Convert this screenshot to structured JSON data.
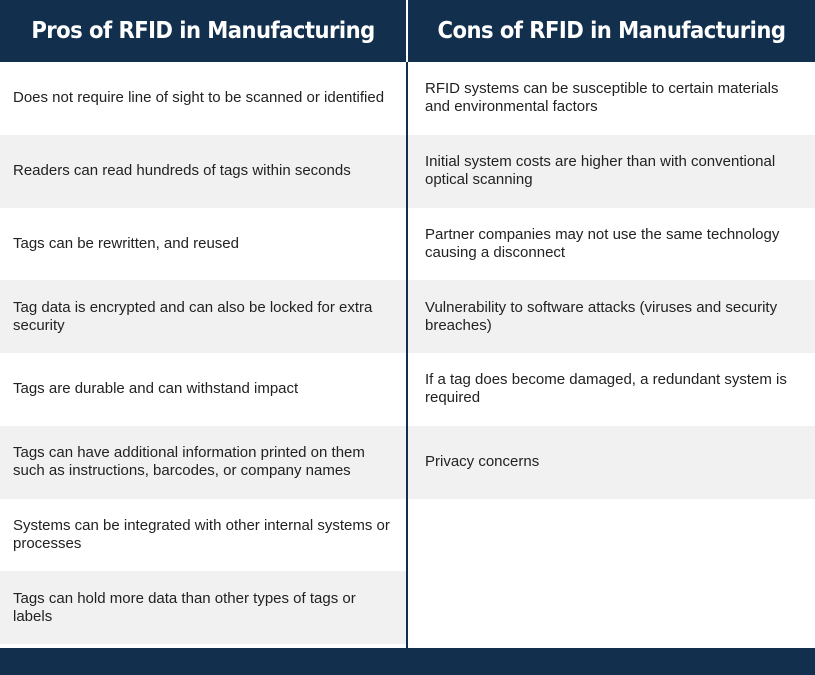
{
  "header": {
    "pros_title": "Pros of RFID in Manufacturing",
    "cons_title": "Cons of RFID in Manufacturing"
  },
  "pros": [
    "Does not require line of sight to be scanned or identified",
    "Readers can read hundreds of tags within seconds",
    "Tags can be rewritten, and reused",
    "Tag data is encrypted and can also be locked for extra security",
    "Tags are durable and can withstand impact",
    "Tags can have additional information printed on them such as instructions, barcodes, or company names",
    "Systems can be integrated with other internal systems or processes",
    "Tags can hold more data than other types of tags or labels"
  ],
  "cons": [
    "RFID systems can be susceptible to certain materials and environmental factors",
    "Initial system costs are higher than with conventional optical scanning",
    "Partner companies may not use the same technology causing a disconnect",
    "Vulnerability to software attacks (viruses and security breaches)",
    "If a tag does become damaged, a redundant system is required",
    "Privacy concerns"
  ],
  "colors": {
    "header_bg": "#12304d",
    "alt_row_bg": "#f1f1f1",
    "text": "#222222"
  }
}
